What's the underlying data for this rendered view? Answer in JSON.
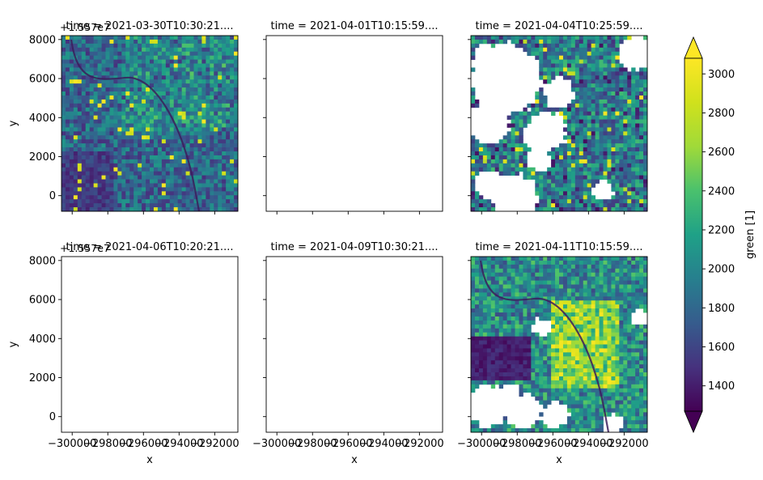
{
  "chart_data": [
    {
      "type": "heatmap",
      "title": "time = 2021-03-30T10:30:21....",
      "offset_label": "+1.557e7",
      "ylabel": "y",
      "xlabel": "",
      "has_data": true,
      "cloud_cover": "low"
    },
    {
      "type": "heatmap",
      "title": "time = 2021-04-01T10:15:59....",
      "ylabel": "",
      "xlabel": "",
      "has_data": false
    },
    {
      "type": "heatmap",
      "title": "time = 2021-04-04T10:25:59....",
      "ylabel": "",
      "xlabel": "",
      "has_data": true,
      "cloud_cover": "high"
    },
    {
      "type": "heatmap",
      "title": "time = 2021-04-06T10:20:21....",
      "offset_label": "+1.557e7",
      "ylabel": "y",
      "xlabel": "x",
      "has_data": false
    },
    {
      "type": "heatmap",
      "title": "time = 2021-04-09T10:30:21....",
      "ylabel": "",
      "xlabel": "x",
      "has_data": false
    },
    {
      "type": "heatmap",
      "title": "time = 2021-04-11T10:15:59....",
      "ylabel": "",
      "xlabel": "x",
      "has_data": true,
      "cloud_cover": "medium"
    }
  ],
  "shared_axes": {
    "ylim": [
      -800,
      8200
    ],
    "yticks": [
      0,
      2000,
      4000,
      6000,
      8000
    ],
    "ytick_labels": [
      "0",
      "2000",
      "4000",
      "6000",
      "8000"
    ],
    "xlim": [
      -300600,
      -290700
    ],
    "xticks": [
      -300000,
      -298000,
      -296000,
      -294000,
      -292000
    ],
    "xtick_labels": [
      "−300000",
      "−298000",
      "−296000",
      "−294000",
      "−292000"
    ]
  },
  "colorbar": {
    "label": "green [1]",
    "colormap": "viridis",
    "range": [
      1270,
      3080
    ],
    "ticks": [
      1400,
      1600,
      1800,
      2000,
      2200,
      2400,
      2600,
      2800,
      3000
    ],
    "tick_labels": [
      "1400",
      "1600",
      "1800",
      "2000",
      "2200",
      "2400",
      "2600",
      "2800",
      "3000"
    ],
    "extend": "both"
  }
}
